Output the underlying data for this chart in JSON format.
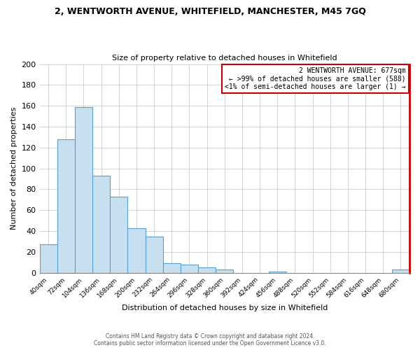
{
  "title": "2, WENTWORTH AVENUE, WHITEFIELD, MANCHESTER, M45 7GQ",
  "subtitle": "Size of property relative to detached houses in Whitefield",
  "xlabel": "Distribution of detached houses by size in Whitefield",
  "ylabel": "Number of detached properties",
  "bar_color": "#c8dff0",
  "bar_edge_color": "#5a9fd4",
  "background_color": "#ffffff",
  "grid_color": "#cccccc",
  "annotation_box_edge_color": "#cc0000",
  "annotation_line1": "2 WENTWORTH AVENUE: 677sqm",
  "annotation_line2": "← >99% of detached houses are smaller (588)",
  "annotation_line3": "<1% of semi-detached houses are larger (1) →",
  "right_spine_color": "#cc0000",
  "footer_line1": "Contains HM Land Registry data © Crown copyright and database right 2024.",
  "footer_line2": "Contains public sector information licensed under the Open Government Licence v3.0.",
  "categories": [
    "40sqm",
    "72sqm",
    "104sqm",
    "136sqm",
    "168sqm",
    "200sqm",
    "232sqm",
    "264sqm",
    "296sqm",
    "328sqm",
    "360sqm",
    "392sqm",
    "424sqm",
    "456sqm",
    "488sqm",
    "520sqm",
    "552sqm",
    "584sqm",
    "616sqm",
    "648sqm",
    "680sqm"
  ],
  "values": [
    27,
    128,
    159,
    93,
    73,
    43,
    35,
    9,
    8,
    5,
    3,
    0,
    0,
    1,
    0,
    0,
    0,
    0,
    0,
    0,
    3
  ],
  "ylim": [
    0,
    200
  ],
  "yticks": [
    0,
    20,
    40,
    60,
    80,
    100,
    120,
    140,
    160,
    180,
    200
  ]
}
